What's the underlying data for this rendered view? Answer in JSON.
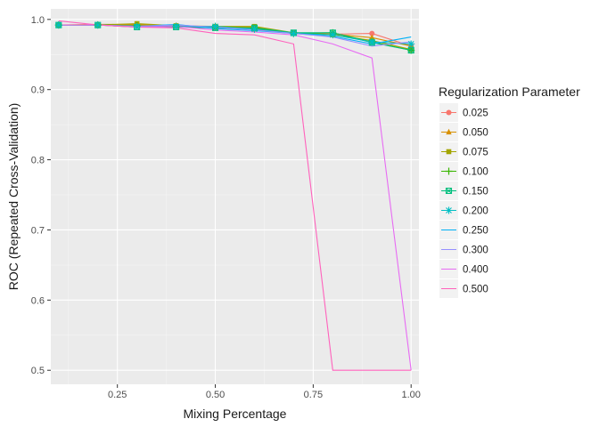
{
  "chart_data": {
    "type": "line",
    "title": "",
    "xlabel": "Mixing Percentage",
    "ylabel": "ROC (Repeated Cross-Validation)",
    "xlim": [
      0.08,
      1.02
    ],
    "ylim": [
      0.48,
      1.015
    ],
    "x_ticks": [
      0.25,
      0.5,
      0.75,
      1.0
    ],
    "x_tick_labels": [
      "0.25",
      "0.50",
      "0.75",
      "1.00"
    ],
    "y_ticks": [
      0.5,
      0.6,
      0.7,
      0.8,
      0.9,
      1.0
    ],
    "y_tick_labels": [
      "0.5",
      "0.6",
      "0.7",
      "0.8",
      "0.9",
      "1.0"
    ],
    "grid": true,
    "legend": {
      "title": "Regularization Parameter",
      "position": "right"
    },
    "x": [
      0.1,
      0.2,
      0.3,
      0.4,
      0.5,
      0.6,
      0.7,
      0.8,
      0.9,
      1.0
    ],
    "series": [
      {
        "name": "0.025",
        "color": "#F8766D",
        "marker": "circle",
        "values": [
          0.992,
          0.992,
          0.992,
          0.99,
          0.988,
          0.986,
          0.981,
          0.979,
          0.98,
          0.962
        ]
      },
      {
        "name": "0.050",
        "color": "#D89000",
        "marker": "triangle",
        "values": [
          0.992,
          0.993,
          0.993,
          0.991,
          0.989,
          0.989,
          0.98,
          0.979,
          0.974,
          0.962
        ]
      },
      {
        "name": "0.075",
        "color": "#A3A500",
        "marker": "square",
        "values": [
          0.992,
          0.992,
          0.994,
          0.991,
          0.99,
          0.99,
          0.981,
          0.978,
          0.97,
          0.957
        ]
      },
      {
        "name": "0.100",
        "color": "#39B600",
        "marker": "plus",
        "values": [
          0.992,
          0.992,
          0.991,
          0.99,
          0.99,
          0.987,
          0.98,
          0.981,
          0.968,
          0.956
        ]
      },
      {
        "name": "0.150",
        "color": "#00BF7D",
        "marker": "square-cross",
        "values": [
          0.992,
          0.992,
          0.989,
          0.989,
          0.988,
          0.988,
          0.981,
          0.981,
          0.967,
          0.956
        ]
      },
      {
        "name": "0.200",
        "color": "#00BFC4",
        "marker": "star",
        "values": [
          0.992,
          0.992,
          0.99,
          0.99,
          0.99,
          0.986,
          0.98,
          0.978,
          0.968,
          0.965
        ]
      },
      {
        "name": "0.250",
        "color": "#00B0F6",
        "marker": "none",
        "values": [
          0.992,
          0.992,
          0.99,
          0.993,
          0.987,
          0.984,
          0.98,
          0.976,
          0.965,
          0.975
        ]
      },
      {
        "name": "0.300",
        "color": "#9590FF",
        "marker": "none",
        "values": [
          0.992,
          0.992,
          0.99,
          0.992,
          0.989,
          0.985,
          0.98,
          0.975,
          0.962,
          0.968
        ]
      },
      {
        "name": "0.400",
        "color": "#E76BF3",
        "marker": "none",
        "values": [
          0.992,
          0.992,
          0.989,
          0.99,
          0.985,
          0.982,
          0.978,
          0.965,
          0.945,
          0.5
        ]
      },
      {
        "name": "0.500",
        "color": "#FF62BC",
        "marker": "none",
        "values": [
          0.998,
          0.992,
          0.989,
          0.988,
          0.98,
          0.978,
          0.965,
          0.5,
          0.5,
          0.5
        ]
      }
    ]
  }
}
